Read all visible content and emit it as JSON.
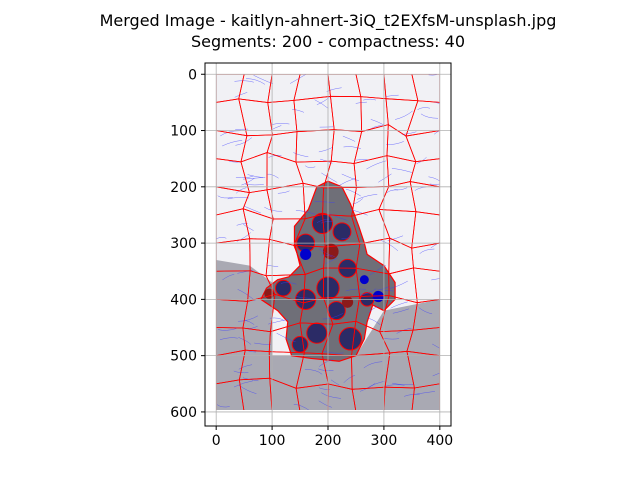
{
  "chart_data": {
    "type": "image",
    "title": "Merged Image - kaitlyn-ahnert-3iQ_t2EXfsM-unsplash.jpg",
    "subtitle": "Segments: 200 - compactness: 40",
    "x_ticks": [
      0,
      100,
      200,
      300,
      400
    ],
    "y_ticks": [
      0,
      100,
      200,
      300,
      400,
      500,
      600
    ],
    "xlim": [
      -20,
      420
    ],
    "ylim": [
      625,
      -20
    ],
    "image_extent": {
      "x": [
        0,
        400
      ],
      "y": [
        0,
        600
      ]
    },
    "grid": true,
    "colors": {
      "segment_boundary": "#ff0000",
      "flow_lines": "#3a3aff",
      "background_light": "#f1f1f5",
      "background_gray": "#a9a9b3",
      "foreground": "#6f6f78",
      "foreground_dark": "#2b2b66",
      "blue_fill": "#0000cc",
      "red_fill": "#8b1a1a"
    }
  }
}
